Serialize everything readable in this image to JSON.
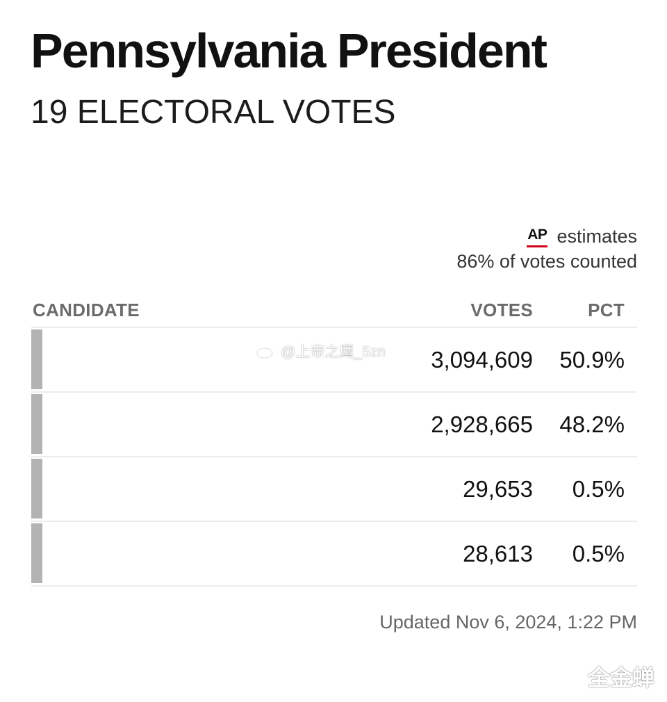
{
  "header": {
    "title": "Pennsylvania President",
    "subtitle": "19 ELECTORAL VOTES"
  },
  "source": {
    "logo_text": "AP",
    "logo_accent_color": "#d0021b",
    "estimate_label": "estimates",
    "counted_label": "86% of votes counted"
  },
  "table": {
    "columns": {
      "candidate": "CANDIDATE",
      "votes": "VOTES",
      "pct": "PCT"
    },
    "rows": [
      {
        "votes": "3,094,609",
        "pct": "50.9%"
      },
      {
        "votes": "2,928,665",
        "pct": "48.2%"
      },
      {
        "votes": "29,653",
        "pct": "0.5%"
      },
      {
        "votes": "28,613",
        "pct": "0.5%"
      }
    ],
    "bar_color": "#b3b3b3"
  },
  "footer": {
    "updated": "Updated Nov 6, 2024, 1:22 PM"
  },
  "watermarks": {
    "weibo_icon": "weibo-icon",
    "weibo_handle": "@上帝之鹰_5zn",
    "corner_text": "全金蝉"
  }
}
